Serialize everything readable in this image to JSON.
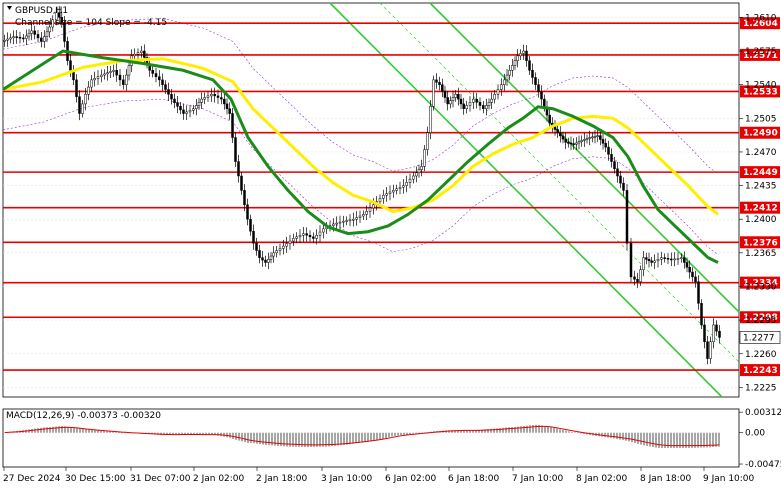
{
  "chart_data": {
    "type": "candlestick",
    "symbol_label": "GBPUSD,H1",
    "channel_label": "Channel size = 104 Slope = -4.15",
    "price_range": [
      1.2215,
      1.2625
    ],
    "price_ticks": [
      "1.2610",
      "1.2575",
      "1.2540",
      "1.2505",
      "1.2470",
      "1.2435",
      "1.2400",
      "1.2365",
      "1.2330",
      "1.2295",
      "1.2260",
      "1.2225"
    ],
    "levels": [
      {
        "label": "1.2604",
        "value": 1.2604
      },
      {
        "label": "1.2571",
        "value": 1.2571
      },
      {
        "label": "1.2533",
        "value": 1.2533
      },
      {
        "label": "1.2490",
        "value": 1.249
      },
      {
        "label": "1.2449",
        "value": 1.2449
      },
      {
        "label": "1.2412",
        "value": 1.2412
      },
      {
        "label": "1.2376",
        "value": 1.2376
      },
      {
        "label": "1.2334",
        "value": 1.2334
      },
      {
        "label": "1.2298",
        "value": 1.2298
      },
      {
        "label": "1.2243",
        "value": 1.2243
      }
    ],
    "current_price": "1.2277",
    "x_labels": [
      "27 Dec 2024",
      "30 Dec 15:00",
      "31 Dec 07:00",
      "2 Jan 02:00",
      "2 Jan 18:00",
      "3 Jan 10:00",
      "6 Jan 02:00",
      "6 Jan 18:00",
      "7 Jan 10:00",
      "8 Jan 02:00",
      "8 Jan 18:00",
      "9 Jan 10:00"
    ],
    "price_path": [
      [
        0,
        1.2585
      ],
      [
        12,
        1.259
      ],
      [
        22,
        1.2588
      ],
      [
        30,
        1.2596
      ],
      [
        40,
        1.2585
      ],
      [
        48,
        1.26
      ],
      [
        55,
        1.2615
      ],
      [
        60,
        1.2605
      ],
      [
        66,
        1.2565
      ],
      [
        72,
        1.2545
      ],
      [
        78,
        1.251
      ],
      [
        84,
        1.253
      ],
      [
        90,
        1.2545
      ],
      [
        100,
        1.255
      ],
      [
        112,
        1.2555
      ],
      [
        122,
        1.254
      ],
      [
        130,
        1.257
      ],
      [
        140,
        1.2575
      ],
      [
        148,
        1.2555
      ],
      [
        158,
        1.2545
      ],
      [
        170,
        1.2525
      ],
      [
        182,
        1.251
      ],
      [
        192,
        1.2515
      ],
      [
        200,
        1.2525
      ],
      [
        210,
        1.253
      ],
      [
        220,
        1.2525
      ],
      [
        228,
        1.251
      ],
      [
        234,
        1.246
      ],
      [
        240,
        1.243
      ],
      [
        246,
        1.24
      ],
      [
        252,
        1.2375
      ],
      [
        258,
        1.236
      ],
      [
        264,
        1.2355
      ],
      [
        272,
        1.2365
      ],
      [
        282,
        1.2372
      ],
      [
        292,
        1.238
      ],
      [
        302,
        1.2385
      ],
      [
        312,
        1.238
      ],
      [
        322,
        1.239
      ],
      [
        332,
        1.2395
      ],
      [
        342,
        1.2398
      ],
      [
        352,
        1.24
      ],
      [
        362,
        1.2405
      ],
      [
        372,
        1.2415
      ],
      [
        382,
        1.2425
      ],
      [
        392,
        1.243
      ],
      [
        402,
        1.2435
      ],
      [
        412,
        1.2445
      ],
      [
        420,
        1.2455
      ],
      [
        426,
        1.249
      ],
      [
        432,
        1.2545
      ],
      [
        438,
        1.254
      ],
      [
        446,
        1.252
      ],
      [
        454,
        1.253
      ],
      [
        462,
        1.2515
      ],
      [
        472,
        1.2525
      ],
      [
        482,
        1.2515
      ],
      [
        490,
        1.2525
      ],
      [
        500,
        1.254
      ],
      [
        508,
        1.2555
      ],
      [
        516,
        1.257
      ],
      [
        522,
        1.2575
      ],
      [
        528,
        1.2555
      ],
      [
        534,
        1.254
      ],
      [
        540,
        1.2525
      ],
      [
        548,
        1.25
      ],
      [
        556,
        1.249
      ],
      [
        564,
        1.248
      ],
      [
        572,
        1.2478
      ],
      [
        580,
        1.2482
      ],
      [
        588,
        1.2485
      ],
      [
        596,
        1.2487
      ],
      [
        604,
        1.2475
      ],
      [
        610,
        1.246
      ],
      [
        616,
        1.2445
      ],
      [
        622,
        1.243
      ],
      [
        626,
        1.2375
      ],
      [
        630,
        1.234
      ],
      [
        636,
        1.2335
      ],
      [
        642,
        1.236
      ],
      [
        650,
        1.2355
      ],
      [
        660,
        1.236
      ],
      [
        670,
        1.2358
      ],
      [
        680,
        1.236
      ],
      [
        688,
        1.2345
      ],
      [
        694,
        1.2335
      ],
      [
        700,
        1.229
      ],
      [
        706,
        1.2255
      ],
      [
        712,
        1.229
      ],
      [
        718,
        1.2277
      ]
    ],
    "ma_fast": [
      [
        0,
        1.2535
      ],
      [
        30,
        1.2555
      ],
      [
        60,
        1.2575
      ],
      [
        100,
        1.2568
      ],
      [
        140,
        1.2562
      ],
      [
        180,
        1.2555
      ],
      [
        210,
        1.2545
      ],
      [
        228,
        1.2525
      ],
      [
        245,
        1.2485
      ],
      [
        265,
        1.2455
      ],
      [
        285,
        1.243
      ],
      [
        305,
        1.2408
      ],
      [
        325,
        1.2392
      ],
      [
        345,
        1.2385
      ],
      [
        365,
        1.2387
      ],
      [
        385,
        1.2393
      ],
      [
        405,
        1.2405
      ],
      [
        425,
        1.242
      ],
      [
        445,
        1.244
      ],
      [
        465,
        1.246
      ],
      [
        485,
        1.2478
      ],
      [
        505,
        1.2495
      ],
      [
        520,
        1.2505
      ],
      [
        535,
        1.2517
      ],
      [
        550,
        1.2515
      ],
      [
        570,
        1.2507
      ],
      [
        590,
        1.2497
      ],
      [
        610,
        1.2485
      ],
      [
        625,
        1.2465
      ],
      [
        640,
        1.2435
      ],
      [
        655,
        1.241
      ],
      [
        670,
        1.2395
      ],
      [
        690,
        1.2375
      ],
      [
        705,
        1.236
      ],
      [
        715,
        1.2355
      ]
    ],
    "ma_slow": [
      [
        0,
        1.2535
      ],
      [
        40,
        1.2543
      ],
      [
        80,
        1.2558
      ],
      [
        120,
        1.2565
      ],
      [
        160,
        1.2567
      ],
      [
        200,
        1.2557
      ],
      [
        230,
        1.2543
      ],
      [
        250,
        1.2515
      ],
      [
        270,
        1.2495
      ],
      [
        290,
        1.2475
      ],
      [
        310,
        1.2455
      ],
      [
        330,
        1.2438
      ],
      [
        350,
        1.2425
      ],
      [
        370,
        1.2418
      ],
      [
        390,
        1.2408
      ],
      [
        410,
        1.2412
      ],
      [
        430,
        1.242
      ],
      [
        450,
        1.2435
      ],
      [
        470,
        1.2455
      ],
      [
        490,
        1.2468
      ],
      [
        510,
        1.2478
      ],
      [
        530,
        1.2485
      ],
      [
        550,
        1.2497
      ],
      [
        570,
        1.2505
      ],
      [
        590,
        1.2507
      ],
      [
        610,
        1.2505
      ],
      [
        625,
        1.2495
      ],
      [
        645,
        1.2475
      ],
      [
        665,
        1.2455
      ],
      [
        685,
        1.2435
      ],
      [
        705,
        1.2413
      ],
      [
        715,
        1.2405
      ]
    ],
    "macd": {
      "label": "MACD(12,26,9) -0.00373 -0.00320",
      "ticks": [
        "0.00312",
        "0.00",
        "-0.00475"
      ],
      "range": [
        -0.0052,
        0.0036
      ]
    }
  }
}
